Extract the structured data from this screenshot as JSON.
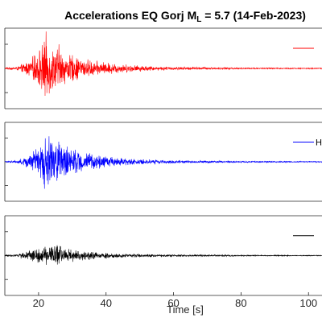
{
  "chart_data": {
    "type": "line",
    "title": {
      "prefix": "Accelerations EQ Gorj M",
      "subscript": "L",
      "suffix": " = 5.7 (14-Feb-2023)"
    },
    "xlabel": "Time [s]",
    "xlim": [
      10,
      104
    ],
    "xticks": [
      20,
      40,
      60,
      80,
      100
    ],
    "xtick_labels": [
      "20",
      "40",
      "60",
      "80",
      "100"
    ],
    "ylabel": "",
    "grid": false,
    "panels": [
      {
        "component": "top",
        "color": "#ff0000",
        "legend_label": "",
        "legend_position": "top-right",
        "ylim": [
          -1,
          1
        ],
        "envelope": {
          "time_s": [
            10,
            14,
            16,
            18,
            19,
            20,
            21,
            22,
            23,
            24,
            25,
            26,
            27,
            28,
            30,
            32,
            35,
            38,
            42,
            46,
            50,
            55,
            60,
            70,
            80,
            90,
            104
          ],
          "amplitude": [
            0.02,
            0.06,
            0.18,
            0.3,
            0.45,
            0.55,
            0.7,
            1.0,
            0.85,
            0.65,
            0.6,
            0.75,
            0.5,
            0.45,
            0.4,
            0.33,
            0.25,
            0.2,
            0.16,
            0.12,
            0.09,
            0.06,
            0.05,
            0.035,
            0.025,
            0.02,
            0.015
          ]
        }
      },
      {
        "component": "middle",
        "color": "#0000ff",
        "legend_label": "H",
        "legend_position": "top-right",
        "ylim": [
          -1,
          1
        ],
        "envelope": {
          "time_s": [
            10,
            14,
            16,
            18,
            19,
            20,
            21,
            22,
            23,
            24,
            25,
            26,
            27,
            28,
            30,
            32,
            35,
            38,
            42,
            46,
            50,
            55,
            60,
            70,
            80,
            90,
            104
          ],
          "amplitude": [
            0.02,
            0.05,
            0.15,
            0.3,
            0.4,
            0.5,
            0.62,
            0.95,
            0.8,
            0.6,
            0.55,
            0.88,
            0.5,
            0.45,
            0.4,
            0.33,
            0.25,
            0.2,
            0.15,
            0.11,
            0.08,
            0.06,
            0.045,
            0.035,
            0.025,
            0.02,
            0.015
          ]
        }
      },
      {
        "component": "bottom",
        "color": "#000000",
        "legend_label": "",
        "legend_position": "top-right",
        "ylim": [
          -1,
          1
        ],
        "envelope": {
          "time_s": [
            10,
            14,
            16,
            18,
            19,
            20,
            21,
            22,
            23,
            24,
            25,
            26,
            27,
            28,
            30,
            32,
            35,
            38,
            42,
            46,
            50,
            55,
            60,
            70,
            80,
            90,
            104
          ],
          "amplitude": [
            0.02,
            0.05,
            0.12,
            0.17,
            0.2,
            0.22,
            0.25,
            0.28,
            0.27,
            0.28,
            0.3,
            0.38,
            0.25,
            0.22,
            0.19,
            0.16,
            0.12,
            0.1,
            0.08,
            0.06,
            0.05,
            0.04,
            0.03,
            0.025,
            0.02,
            0.015,
            0.012
          ]
        }
      }
    ]
  }
}
